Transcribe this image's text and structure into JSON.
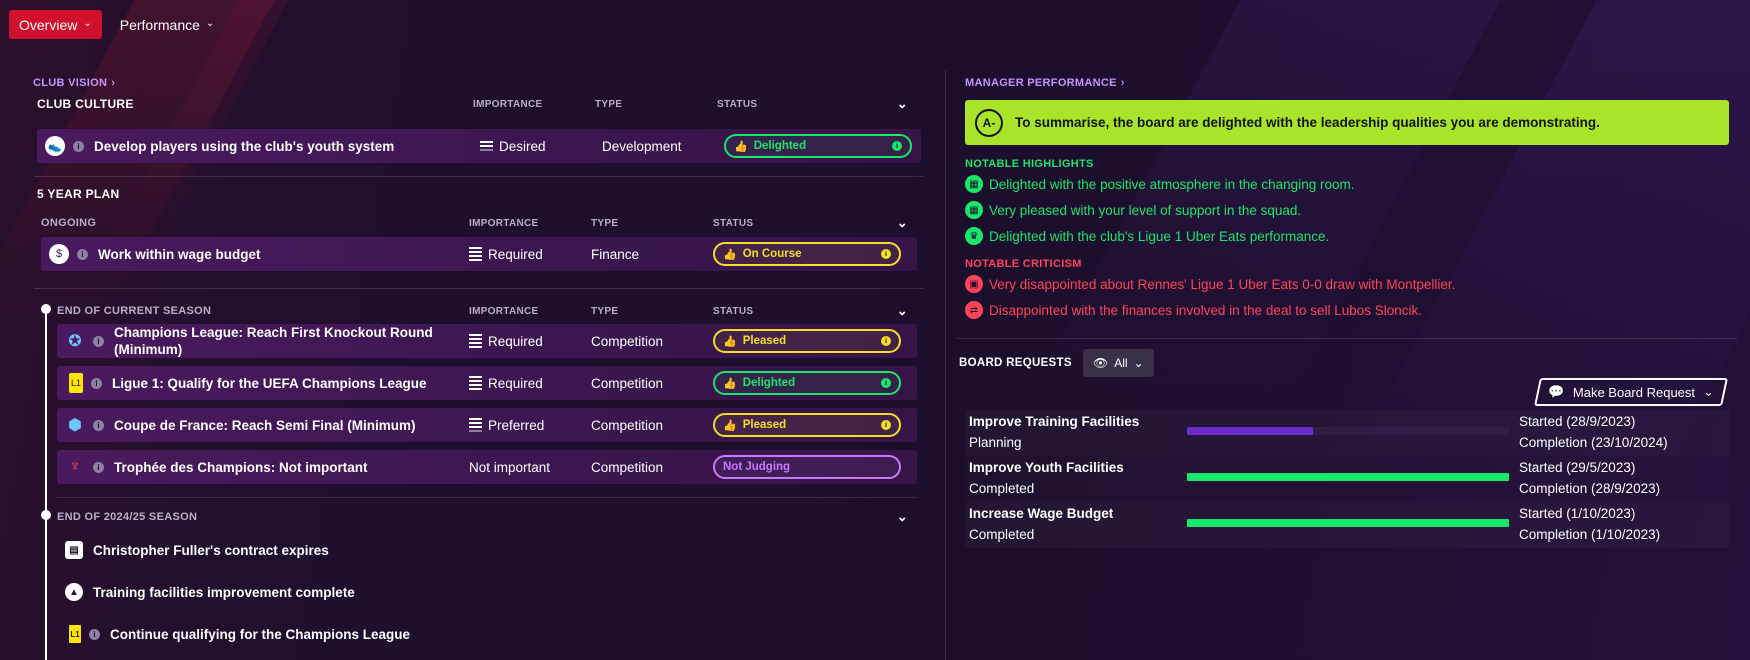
{
  "tabs": [
    {
      "label": "Overview"
    },
    {
      "label": "Performance"
    }
  ],
  "club_vision": {
    "link_label": "CLUB VISION",
    "club_culture": {
      "title": "CLUB CULTURE",
      "headers": {
        "importance": "IMPORTANCE",
        "type": "TYPE",
        "status": "STATUS"
      },
      "row": {
        "name": "Develop players using the club's youth system",
        "importance": "Desired",
        "type": "Development",
        "status": "Delighted"
      }
    },
    "five_year": {
      "title": "5 YEAR PLAN",
      "ongoing": {
        "title": "ONGOING",
        "headers": {
          "importance": "IMPORTANCE",
          "type": "TYPE",
          "status": "STATUS"
        },
        "row": {
          "name": "Work within wage budget",
          "importance": "Required",
          "type": "Finance",
          "status": "On Course"
        }
      },
      "current_season": {
        "title": "END OF CURRENT SEASON",
        "headers": {
          "importance": "IMPORTANCE",
          "type": "TYPE",
          "status": "STATUS"
        },
        "rows": [
          {
            "name": "Champions League: Reach First Knockout Round (Minimum)",
            "importance": "Required",
            "type": "Competition",
            "status": "Pleased"
          },
          {
            "name": "Ligue 1: Qualify for the UEFA Champions League",
            "importance": "Required",
            "type": "Competition",
            "status": "Delighted"
          },
          {
            "name": "Coupe de France: Reach Semi Final (Minimum)",
            "importance": "Preferred",
            "type": "Competition",
            "status": "Pleased"
          },
          {
            "name": "Trophée des Champions: Not important",
            "importance": "Not important",
            "type": "Competition",
            "status": "Not Judging"
          }
        ]
      },
      "season_2425": {
        "title": "END OF 2024/25 SEASON",
        "items": [
          {
            "label": "Christopher Fuller's contract expires"
          },
          {
            "label": "Training facilities improvement complete"
          },
          {
            "label": "Continue qualifying for the Champions League"
          }
        ]
      }
    }
  },
  "manager_performance": {
    "link_label": "MANAGER PERFORMANCE",
    "grade": "A-",
    "summary": "To summarise, the board are delighted with the leadership qualities you are demonstrating.",
    "highlights_title": "NOTABLE HIGHLIGHTS",
    "highlights": [
      {
        "text": "Delighted with the positive atmosphere in the changing room."
      },
      {
        "text": "Very pleased with your level of support in the squad."
      },
      {
        "text": "Delighted with the club's Ligue 1 Uber Eats performance."
      }
    ],
    "criticism_title": "NOTABLE CRITICISM",
    "criticism": [
      {
        "text": "Very disappointed about Rennes' Ligue 1 Uber Eats 0-0 draw with Montpellier."
      },
      {
        "text": "Disappointed with the finances involved in the deal to sell Lubos Sloncik."
      }
    ]
  },
  "board_requests": {
    "title": "BOARD REQUESTS",
    "filter_label": "All",
    "make_request_label": "Make Board Request",
    "items": [
      {
        "name": "Improve Training Facilities",
        "status": "Planning",
        "progress": 0.39,
        "color": "#6a2bc8",
        "started": "Started (28/9/2023)",
        "completion": "Completion (23/10/2024)"
      },
      {
        "name": "Improve Youth Facilities",
        "status": "Completed",
        "progress": 1.0,
        "color": "#19e66a",
        "started": "Started (29/5/2023)",
        "completion": "Completion (28/9/2023)"
      },
      {
        "name": "Increase Wage Budget",
        "status": "Completed",
        "progress": 1.0,
        "color": "#19e66a",
        "started": "Started (1/10/2023)",
        "completion": "Completion (1/10/2023)"
      }
    ]
  },
  "colors": {
    "accent_red": "#d0102c",
    "delighted": "#19e66a",
    "pleased": "#f0e027",
    "not_judging": "#c87aff",
    "summary_bg": "#a9e32a",
    "criticism": "#ff4458"
  }
}
